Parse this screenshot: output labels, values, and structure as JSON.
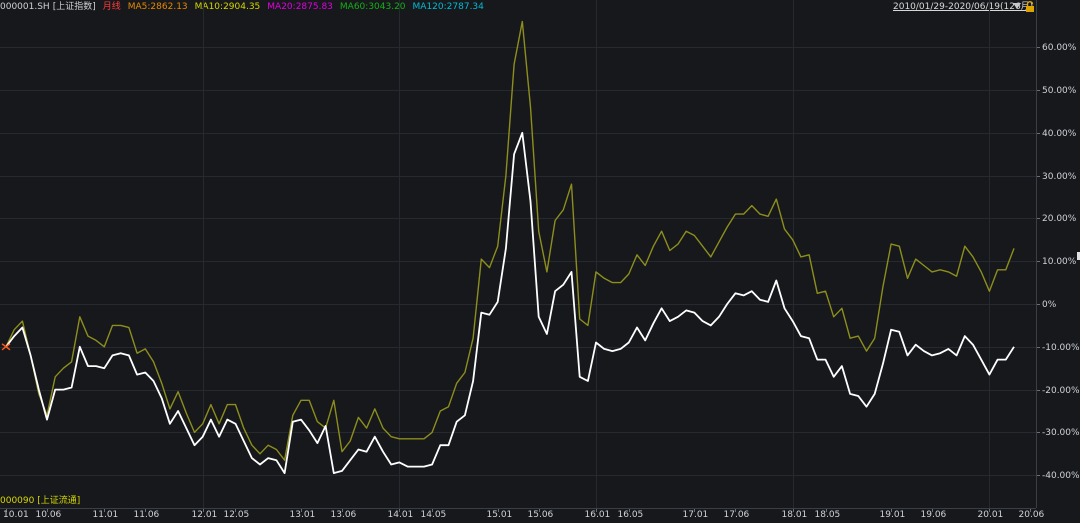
{
  "header": {
    "symbol": "000001.SH",
    "name": "[上证指数]",
    "period": "月线",
    "ma5": "MA5:2862.13",
    "ma10": "MA10:2904.35",
    "ma20": "MA20:2875.83",
    "ma60": "MA60:3043.20",
    "ma120": "MA120:2787.34",
    "range": "2010/01/29-2020/06/19(126月)"
  },
  "colors": {
    "background": "#16181c",
    "grid": "#262a30",
    "main_series": "#ffffff",
    "compare_series": "#8e8e1c",
    "period": "#ff3b3b",
    "ma5": "#e68a00",
    "ma10": "#d6d600",
    "ma20": "#e000e0",
    "ma60": "#16b016",
    "ma120": "#00bcd4"
  },
  "compare_label": "000090 [上证流通]",
  "chart_data": {
    "type": "line",
    "title": "",
    "xlabel": "",
    "ylabel": "",
    "y_unit": "%",
    "ylim": [
      -45,
      70
    ],
    "y_ticks": [
      60,
      50,
      40,
      30,
      20,
      10,
      0,
      -10,
      -20,
      -30,
      -40
    ],
    "y_tick_labels": [
      "60.00%",
      "50.00%",
      "40.00%",
      "30.00%",
      "20.00%",
      "10.00%",
      "0%",
      "-10.00%",
      "-20.00%",
      "-30.00%",
      "-40.00%"
    ],
    "x_tick_labels": [
      "10.01",
      "10.06",
      "11.01",
      "11.06",
      "12.01",
      "12.05",
      "13.01",
      "13.06",
      "14.01",
      "14.05",
      "15.01",
      "15.06",
      "16.01",
      "16.05",
      "17.01",
      "17.06",
      "18.01",
      "18.05",
      "19.01",
      "19.06",
      "20.01",
      "20.06"
    ],
    "x_tick_index": [
      0,
      5,
      12,
      17,
      24,
      28,
      36,
      41,
      48,
      52,
      60,
      65,
      72,
      76,
      84,
      89,
      96,
      100,
      108,
      113,
      120,
      125
    ],
    "grid": true,
    "series": [
      {
        "name": "000001.SH [上证指数]",
        "values": [
          -10,
          -7.5,
          -5.5,
          -12,
          -20,
          -27,
          -20,
          -20,
          -19.5,
          -10,
          -14.5,
          -14.5,
          -15,
          -12,
          -11.5,
          -12,
          -16.5,
          -16,
          -18,
          -22,
          -28,
          -25,
          -29,
          -33,
          -31,
          -27,
          -31,
          -27,
          -28,
          -32,
          -36,
          -37.5,
          -36,
          -36.5,
          -39.5,
          -27.5,
          -27,
          -29.5,
          -32.5,
          -28.5,
          -39.5,
          -39,
          -36.5,
          -34,
          -34.5,
          -31,
          -34.5,
          -37.5,
          -37,
          -38,
          -38,
          -38,
          -37.5,
          -33,
          -33,
          -27.5,
          -26,
          -18,
          -2,
          -2.5,
          0.5,
          13,
          35,
          40,
          24,
          -3,
          -7,
          3,
          4.5,
          7.5,
          -17,
          -18,
          -9,
          -10.5,
          -11,
          -10.5,
          -9,
          -5.5,
          -8.5,
          -4.5,
          -1,
          -4,
          -3,
          -1.5,
          -2,
          -4,
          -5,
          -3,
          0,
          2.5,
          2,
          3,
          1,
          0.5,
          5.5,
          -1,
          -4,
          -7.5,
          -8,
          -13,
          -13,
          -17,
          -14.5,
          -21,
          -21.5,
          -24,
          -21,
          -14,
          -6,
          -6.5,
          -12,
          -9.5,
          -11,
          -12,
          -11.5,
          -10.5,
          -12,
          -7.5,
          -9.5,
          -13,
          -16.5,
          -13,
          -13,
          -10
        ]
      },
      {
        "name": "000090 [上证流通]",
        "values": [
          -10,
          -6,
          -4,
          -12,
          -21,
          -26,
          -17,
          -15,
          -13.5,
          -3,
          -7.5,
          -8.5,
          -10,
          -5,
          -5,
          -5.5,
          -11.5,
          -10.5,
          -13.5,
          -18.5,
          -24.5,
          -20.5,
          -25.5,
          -30,
          -28,
          -23.5,
          -28,
          -23.5,
          -23.5,
          -29,
          -33,
          -35,
          -33,
          -34,
          -36.5,
          -26,
          -22.5,
          -22.5,
          -27.5,
          -29,
          -22.5,
          -34.5,
          -32,
          -26.5,
          -29,
          -24.5,
          -29,
          -31,
          -31.5,
          -31.5,
          -31.5,
          -31.5,
          -30,
          -25,
          -24,
          -18.5,
          -16,
          -8,
          10.5,
          8.5,
          13.5,
          30,
          56,
          66,
          46,
          17,
          7.5,
          19.5,
          22,
          28,
          -3.5,
          -5,
          7.5,
          6,
          5,
          5,
          7,
          11.5,
          9,
          13.5,
          17,
          12.5,
          14,
          17,
          16,
          13.5,
          11,
          14.5,
          18,
          21,
          21,
          23,
          21,
          20.5,
          24.5,
          17.5,
          15,
          11,
          11.5,
          2.5,
          3,
          -3,
          -1,
          -8,
          -7.5,
          -11,
          -8,
          4,
          14,
          13.5,
          6,
          10.5,
          9,
          7.5,
          8,
          7.5,
          6.5,
          13.5,
          11,
          7.5,
          3,
          8,
          8,
          13
        ]
      }
    ]
  }
}
